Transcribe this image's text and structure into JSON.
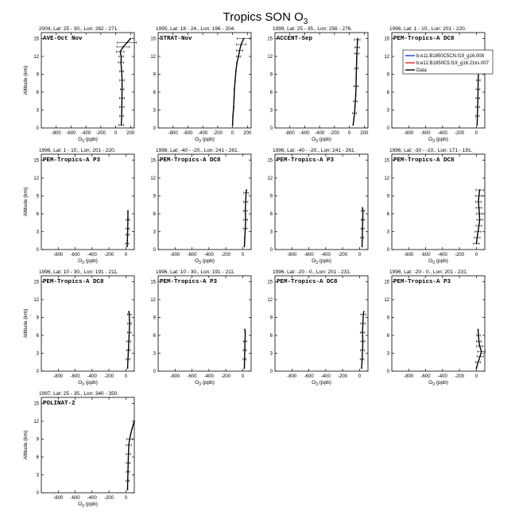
{
  "figure": {
    "title_main": "Tropics SON O",
    "title_sub": "3"
  },
  "panel_common": {
    "ylabel": "Altitude (km)",
    "xlabel_main": "O",
    "xlabel_sub": "3",
    "xlabel_unit": " (ppb)",
    "ylim": [
      0,
      16
    ],
    "yticks": [
      0,
      3,
      6,
      9,
      12,
      15
    ]
  },
  "legend": {
    "entries": [
      {
        "label": "b.e11.B1850C5CN.f19_g16.008",
        "color": "#1f3bd6"
      },
      {
        "label": "b.e12.B1850C5.f19_g16.21ks.007",
        "color": "#e02020"
      },
      {
        "label": "Data",
        "color": "#000000"
      }
    ]
  },
  "colors": {
    "model1": "#1f3bd6",
    "model2": "#e02020",
    "data": "#000000"
  },
  "chart_data": [
    {
      "type": "line",
      "header": "2004, Lat: 25 - 30., Lon: 262 - 271.",
      "campaign": "AVE-Oct Nov",
      "xlim": [
        -1000,
        250
      ],
      "xticks": [
        -800,
        -600,
        -400,
        -200,
        0,
        200
      ],
      "x": [
        75,
        80,
        82,
        84,
        86,
        85,
        80,
        70,
        75,
        60,
        100,
        150,
        200
      ],
      "y": [
        0.5,
        2,
        3.5,
        5,
        6.5,
        8,
        9.5,
        11,
        12,
        12.8,
        13.6,
        14.3,
        15
      ],
      "whiskers": [
        [
          0.5,
          0.8
        ],
        [
          2,
          0.6
        ],
        [
          3.5,
          0.7
        ],
        [
          5,
          0.8
        ],
        [
          6.5,
          0.6
        ],
        [
          8,
          0.7
        ],
        [
          9.5,
          0.6
        ],
        [
          11,
          0.8
        ],
        [
          12,
          0.7
        ],
        [
          12.8,
          1.2
        ],
        [
          13.6,
          2
        ],
        [
          14.3,
          3
        ]
      ]
    },
    {
      "type": "line",
      "header": "1995, Lat: 18 - 24., Lon: 196 - 204.",
      "campaign": "STRAT-Nov",
      "xlim": [
        -1000,
        250
      ],
      "xticks": [
        -800,
        -600,
        -400,
        -200,
        0,
        200
      ],
      "x": [
        0,
        5,
        15,
        20,
        25,
        35,
        45,
        60,
        80,
        95,
        115,
        150
      ],
      "y": [
        0.5,
        2,
        3.5,
        5,
        6.5,
        8,
        9.5,
        11,
        12,
        13,
        14,
        15
      ],
      "whiskers": [
        [
          12,
          0.7
        ],
        [
          13,
          1
        ],
        [
          14,
          1.5
        ],
        [
          15,
          2
        ]
      ]
    },
    {
      "type": "line",
      "header": "1999, Lat: 25 - 35., Lon: 256 - 276.",
      "campaign": "ACCENT-Sep",
      "xlim": [
        -1000,
        250
      ],
      "xticks": [
        -800,
        -600,
        -400,
        -200,
        0,
        200
      ],
      "x": [
        50,
        60,
        70,
        75,
        80,
        85,
        90,
        92,
        95,
        98,
        100,
        105,
        110
      ],
      "y": [
        0.5,
        1.5,
        2.5,
        3.5,
        4.5,
        5.5,
        7,
        8.5,
        10,
        11.5,
        12.5,
        13.5,
        15
      ],
      "whiskers": [
        [
          2.5,
          0.6
        ],
        [
          4.5,
          0.6
        ],
        [
          7,
          0.7
        ],
        [
          10,
          0.6
        ],
        [
          12.5,
          0.7
        ],
        [
          13.5,
          0.8
        ],
        [
          14.8,
          0.9
        ]
      ]
    },
    {
      "type": "line",
      "header": "1996, Lat: 1 - 10., Lon: 201 - 220.",
      "campaign": "PEM-Tropics-A DC8",
      "xlim": [
        -1000,
        100
      ],
      "xticks": [
        -800,
        -600,
        -400,
        -200,
        0
      ],
      "x": [
        10,
        12,
        15,
        18,
        20,
        22,
        25,
        20,
        15
      ],
      "y": [
        0.5,
        2,
        3.5,
        5,
        6.5,
        8,
        9.5,
        11,
        12
      ],
      "whiskers": [
        [
          2,
          0.6
        ],
        [
          3.5,
          0.6
        ],
        [
          5,
          0.6
        ],
        [
          6.5,
          0.6
        ],
        [
          8,
          0.6
        ],
        [
          9.5,
          0.7
        ]
      ]
    },
    {
      "type": "line",
      "header": "1996, Lat: 1 - 10., Lon: 201 - 220.",
      "campaign": "PEM-Tropics-A P3",
      "xlim": [
        -1000,
        100
      ],
      "xticks": [
        -800,
        -600,
        -400,
        -200,
        0
      ],
      "x": [
        15,
        18,
        20,
        22,
        24,
        25
      ],
      "y": [
        0.5,
        1.5,
        2.5,
        3.5,
        5,
        6.5
      ],
      "whiskers": [
        [
          1,
          0.5
        ],
        [
          2.5,
          0.5
        ],
        [
          3.5,
          0.5
        ],
        [
          5,
          0.5
        ]
      ]
    },
    {
      "type": "line",
      "header": "1996, Lat: -40 - -20., Lon: 241 - 261.",
      "campaign": "PEM-Tropics-A DC8",
      "xlim": [
        -1000,
        100
      ],
      "xticks": [
        -800,
        -600,
        -400,
        -200,
        0
      ],
      "x": [
        20,
        25,
        30,
        35,
        30,
        35,
        40,
        45
      ],
      "y": [
        0.5,
        2,
        3.5,
        5,
        6.5,
        8,
        9.5,
        10
      ],
      "whiskers": [
        [
          3.5,
          0.6
        ],
        [
          5,
          0.6
        ],
        [
          6.5,
          0.6
        ],
        [
          8,
          0.7
        ],
        [
          9.5,
          0.7
        ]
      ]
    },
    {
      "type": "line",
      "header": "1996, Lat: -40 - -20., Lon: 241 - 261.",
      "campaign": "PEM-Tropics-A P3",
      "xlim": [
        -1000,
        100
      ],
      "xticks": [
        -800,
        -600,
        -400,
        -200,
        0
      ],
      "x": [
        30,
        32,
        35,
        38,
        40,
        35
      ],
      "y": [
        0.5,
        2,
        3.5,
        5,
        6.5,
        7
      ],
      "whiskers": [
        [
          2,
          0.5
        ],
        [
          3.5,
          0.5
        ],
        [
          5,
          0.5
        ],
        [
          6.5,
          0.5
        ]
      ]
    },
    {
      "type": "line",
      "header": "1996, Lat: -30 - -10., Lon: 171 - 191.",
      "campaign": "PEM-Tropics-A DC8",
      "xlim": [
        -1000,
        100
      ],
      "xticks": [
        -800,
        -600,
        -400,
        -200,
        0
      ],
      "x": [
        0,
        10,
        20,
        30,
        40,
        35,
        30,
        25,
        30,
        40
      ],
      "y": [
        1,
        2,
        3,
        4,
        5,
        6,
        7,
        8,
        9,
        10
      ],
      "whiskers": [
        [
          1,
          0.9
        ],
        [
          2,
          0.9
        ],
        [
          3,
          0.9
        ],
        [
          4,
          0.9
        ],
        [
          5,
          0.9
        ],
        [
          6,
          0.9
        ],
        [
          7,
          0.9
        ],
        [
          8,
          0.9
        ],
        [
          9,
          1.0
        ],
        [
          10,
          1.2
        ]
      ]
    },
    {
      "type": "line",
      "header": "1996, Lat: 10 - 30., Lon: 191 - 211.",
      "campaign": "PEM-Tropics-A DC8",
      "xlim": [
        -1000,
        100
      ],
      "xticks": [
        -800,
        -600,
        -400,
        -200,
        0
      ],
      "x": [
        20,
        25,
        30,
        35,
        40,
        45,
        40,
        35
      ],
      "y": [
        0.5,
        2,
        3.5,
        5,
        6.5,
        8,
        9.5,
        10
      ],
      "whiskers": [
        [
          2,
          0.6
        ],
        [
          3.5,
          0.6
        ],
        [
          5,
          0.6
        ],
        [
          6.5,
          0.6
        ],
        [
          8,
          0.6
        ],
        [
          9.5,
          0.6
        ]
      ]
    },
    {
      "type": "line",
      "header": "1996, Lat: 10 - 30., Lon: 191 - 211.",
      "campaign": "PEM-Tropics-A P3",
      "xlim": [
        -1000,
        100
      ],
      "xticks": [
        -800,
        -600,
        -400,
        -200,
        0
      ],
      "x": [
        20,
        22,
        25,
        28,
        30,
        25
      ],
      "y": [
        0.5,
        2,
        3.5,
        5,
        6.5,
        7
      ],
      "whiskers": [
        [
          2,
          0.5
        ],
        [
          3.5,
          0.5
        ],
        [
          5,
          0.5
        ]
      ]
    },
    {
      "type": "line",
      "header": "1996, Lat: -20 - 0., Lon: 201 - 231.",
      "campaign": "PEM-Tropics-A DC8",
      "xlim": [
        -1000,
        100
      ],
      "xticks": [
        -800,
        -600,
        -400,
        -200,
        0
      ],
      "x": [
        25,
        30,
        35,
        40,
        35,
        40,
        45,
        50
      ],
      "y": [
        0.5,
        2,
        3.5,
        5,
        6.5,
        8,
        9.5,
        10
      ],
      "whiskers": [
        [
          2,
          0.6
        ],
        [
          3.5,
          0.6
        ],
        [
          5,
          0.6
        ],
        [
          6.5,
          0.7
        ],
        [
          8,
          0.7
        ],
        [
          9.5,
          0.8
        ]
      ]
    },
    {
      "type": "line",
      "header": "1996, Lat: -20 - 0., Lon: 201 - 231.",
      "campaign": "PEM-Tropics-A P3",
      "xlim": [
        -1000,
        100
      ],
      "xticks": [
        -800,
        -600,
        -400,
        -200,
        0
      ],
      "x": [
        0,
        20,
        45,
        60,
        40,
        30,
        25,
        20
      ],
      "y": [
        0.5,
        1.5,
        2.5,
        3.3,
        4.2,
        5,
        6,
        7
      ],
      "whiskers": [
        [
          1.5,
          0.8
        ],
        [
          2.5,
          1.0
        ],
        [
          3.3,
          1.2
        ],
        [
          4.2,
          1.0
        ],
        [
          5,
          0.8
        ],
        [
          6,
          0.6
        ]
      ]
    },
    {
      "type": "line",
      "header": "1997, Lat: 25 - 35., Lon: 340 - 350.",
      "campaign": "POLINAT-2",
      "xlim": [
        -1000,
        100
      ],
      "xticks": [
        -800,
        -600,
        -400,
        -200,
        0
      ],
      "x": [
        20,
        22,
        25,
        28,
        30,
        35,
        45,
        60,
        75,
        90,
        100
      ],
      "y": [
        0.5,
        2,
        3.5,
        5,
        6.5,
        8,
        9,
        10,
        10.8,
        11.5,
        12
      ],
      "whiskers": [
        [
          2,
          0.5
        ],
        [
          3.5,
          0.5
        ],
        [
          5,
          0.6
        ],
        [
          6.5,
          0.7
        ],
        [
          8,
          0.8
        ],
        [
          9,
          0.9
        ]
      ]
    }
  ]
}
